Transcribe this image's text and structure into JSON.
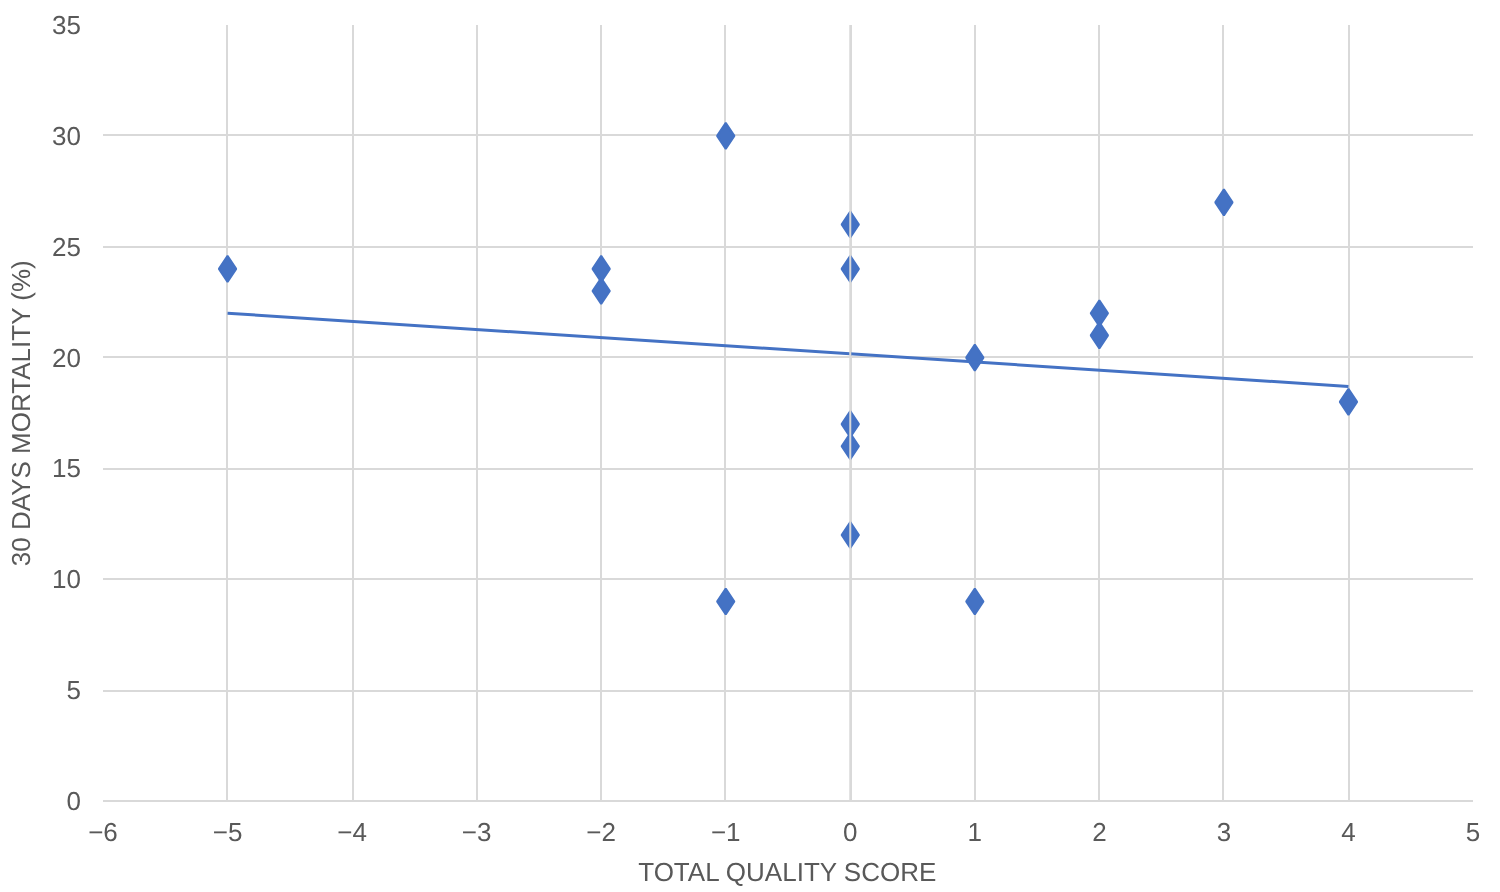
{
  "chart_data": {
    "type": "scatter",
    "xlabel": "TOTAL QUALITY SCORE",
    "ylabel": "30 DAYS MORTALITY (%)",
    "xlim": [
      -6,
      5
    ],
    "ylim": [
      0,
      35
    ],
    "xticks": [
      -6,
      -5,
      -4,
      -3,
      -2,
      -1,
      0,
      1,
      2,
      3,
      4,
      5
    ],
    "yticks": [
      0,
      5,
      10,
      15,
      20,
      25,
      30,
      35
    ],
    "grid": true,
    "marker": "diamond",
    "series": [
      {
        "type": "scatter",
        "color": "#4472c4",
        "x": [
          -5,
          -2,
          -2,
          -1,
          -1,
          0,
          0,
          0,
          0,
          0,
          1,
          1,
          2,
          2,
          3,
          4
        ],
        "values": [
          24,
          24,
          23,
          30,
          9,
          26,
          24,
          17,
          16,
          12,
          20,
          9,
          22,
          21,
          27,
          18
        ]
      },
      {
        "type": "line",
        "color": "#4472c4",
        "marker": "none",
        "x": [
          -5,
          4
        ],
        "values": [
          22,
          18.7
        ]
      }
    ]
  }
}
